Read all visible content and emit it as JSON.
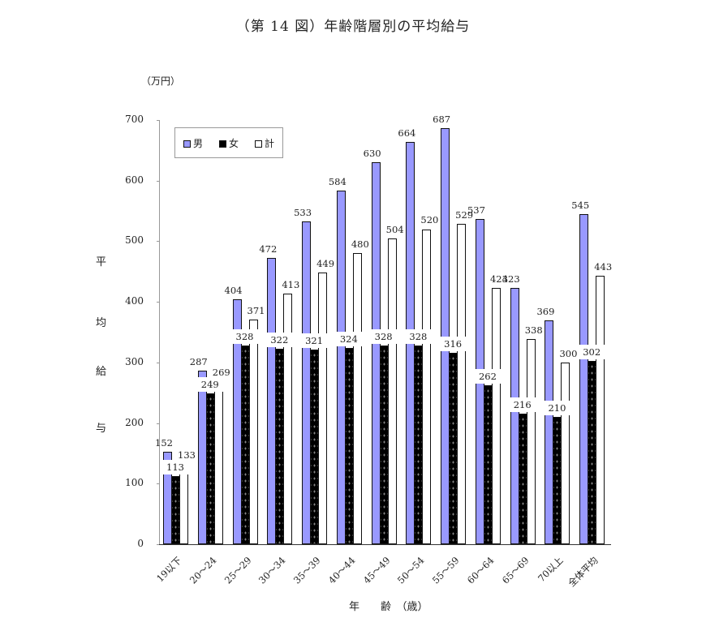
{
  "title": "（第 14 図）年齢階層別の平均給与",
  "unit": "（万円）",
  "ylabel_chars": [
    "平",
    "均",
    "給",
    "与"
  ],
  "xlabel": "年　　齢　（歳）",
  "legend": [
    {
      "name": "男",
      "color": "#9999ff"
    },
    {
      "name": "女",
      "color": "#000000"
    },
    {
      "name": "計",
      "color": "#ffffff"
    }
  ],
  "yticks": [
    "0",
    "100",
    "200",
    "300",
    "400",
    "500",
    "600",
    "700"
  ],
  "chart_data": {
    "type": "bar",
    "title": "（第 14 図）年齢階層別の平均給与",
    "xlabel": "年齢（歳）",
    "ylabel": "平均給与（万円）",
    "ylim": [
      0,
      700
    ],
    "grid": false,
    "legend_position": "top-left inside",
    "categories": [
      "19以下",
      "20～24",
      "25～29",
      "30～34",
      "35～39",
      "40～44",
      "45～49",
      "50～54",
      "55～59",
      "60～64",
      "65～69",
      "70以上",
      "全体平均"
    ],
    "series": [
      {
        "name": "男",
        "values": [
          152,
          287,
          404,
          472,
          533,
          584,
          630,
          664,
          687,
          537,
          423,
          369,
          545
        ]
      },
      {
        "name": "女",
        "values": [
          113,
          249,
          328,
          322,
          321,
          324,
          328,
          328,
          316,
          262,
          216,
          210,
          302
        ]
      },
      {
        "name": "計",
        "values": [
          133,
          269,
          371,
          413,
          449,
          480,
          504,
          520,
          529,
          423,
          338,
          300,
          443
        ]
      }
    ]
  }
}
